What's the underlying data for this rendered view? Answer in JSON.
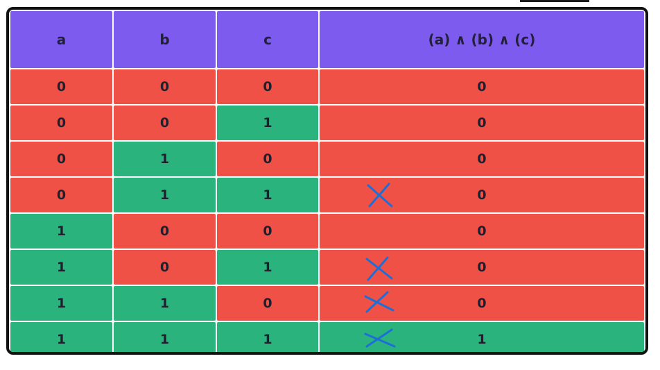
{
  "colors": {
    "header": "#7e5bef",
    "true_cell": "#2bb37e",
    "false_cell": "#f05146",
    "border": "#111111",
    "annotation": "#1b6fd6"
  },
  "table": {
    "headers": [
      "a",
      "b",
      "c",
      "(a) ∧ (b) ∧ (c)"
    ],
    "rows": [
      {
        "a": "0",
        "b": "0",
        "c": "0",
        "result": "0",
        "marked": false
      },
      {
        "a": "0",
        "b": "0",
        "c": "1",
        "result": "0",
        "marked": false
      },
      {
        "a": "0",
        "b": "1",
        "c": "0",
        "result": "0",
        "marked": false
      },
      {
        "a": "0",
        "b": "1",
        "c": "1",
        "result": "0",
        "marked": true
      },
      {
        "a": "1",
        "b": "0",
        "c": "0",
        "result": "0",
        "marked": false
      },
      {
        "a": "1",
        "b": "0",
        "c": "1",
        "result": "0",
        "marked": true
      },
      {
        "a": "1",
        "b": "1",
        "c": "0",
        "result": "0",
        "marked": true
      },
      {
        "a": "1",
        "b": "1",
        "c": "1",
        "result": "1",
        "marked": true
      }
    ]
  },
  "annotation_icon": "handwritten-x-icon"
}
